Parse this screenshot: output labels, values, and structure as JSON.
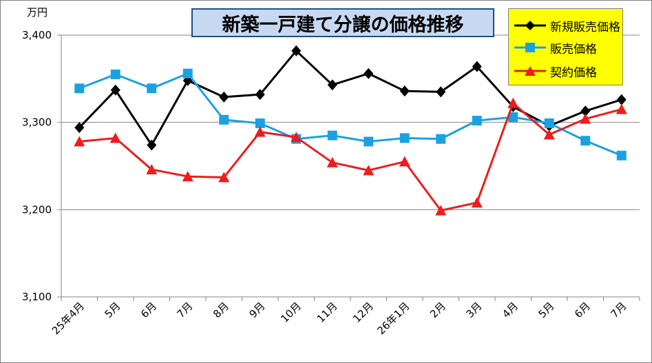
{
  "title": "新築一戸建て分譲の価格推移",
  "unit_label": "万円",
  "colors": {
    "series1": "#000000",
    "series2": "#1ba1e2",
    "series3": "#ee1c1c",
    "legend_bg": "#ffff00",
    "title_bg": "#c6d9f1"
  },
  "chart_data": {
    "type": "line",
    "categories": [
      "25年4月",
      "5月",
      "6月",
      "7月",
      "8月",
      "9月",
      "10月",
      "11月",
      "12月",
      "26年1月",
      "2月",
      "3月",
      "4月",
      "5月",
      "6月",
      "7月"
    ],
    "ylim": [
      3100,
      3400
    ],
    "yticks": [
      "3,100",
      "3,200",
      "3,300",
      "3,400"
    ],
    "ytick_values": [
      3100,
      3200,
      3300,
      3400
    ],
    "grid": true,
    "legend_position": "top-right",
    "series": [
      {
        "name": "新規販売価格",
        "marker": "diamond",
        "values": [
          3294,
          3337,
          3274,
          3348,
          3329,
          3332,
          3382,
          3343,
          3356,
          3336,
          3335,
          3364,
          3318,
          3296,
          3313,
          3326
        ]
      },
      {
        "name": "販売価格",
        "marker": "square",
        "values": [
          3339,
          3355,
          3339,
          3356,
          3303,
          3299,
          3281,
          3285,
          3278,
          3282,
          3281,
          3302,
          3306,
          3299,
          3279,
          3262
        ]
      },
      {
        "name": "契約価格",
        "marker": "triangle",
        "values": [
          3278,
          3282,
          3246,
          3238,
          3237,
          3289,
          3283,
          3254,
          3245,
          3255,
          3199,
          3208,
          3322,
          3286,
          3304,
          3315
        ]
      }
    ]
  }
}
